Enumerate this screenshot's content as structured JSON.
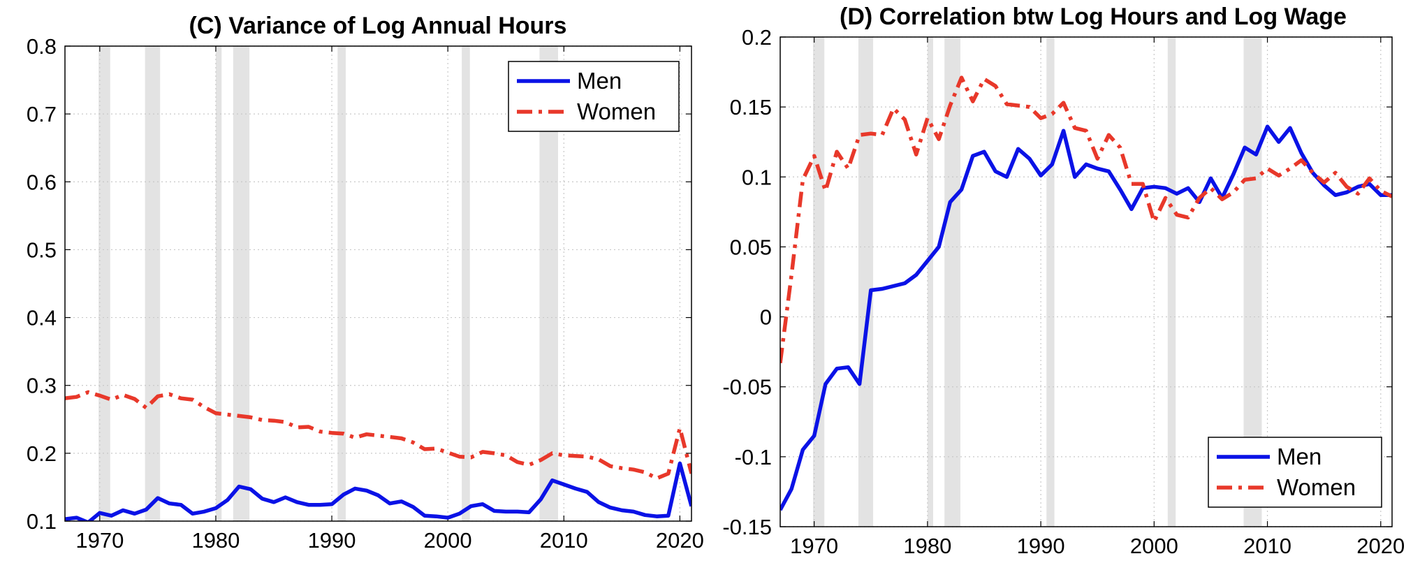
{
  "chart_data": [
    {
      "type": "line",
      "title": "(C) Variance of Log Annual Hours",
      "xlabel": "",
      "ylabel": "",
      "xlim": [
        1967,
        2021
      ],
      "ylim": [
        0.1,
        0.8
      ],
      "x_ticks": [
        1970,
        1980,
        1990,
        2000,
        2010,
        2020
      ],
      "y_ticks": [
        0.1,
        0.2,
        0.3,
        0.4,
        0.5,
        0.6,
        0.7,
        0.8
      ],
      "x_tick_labels": [
        "1970",
        "1980",
        "1990",
        "2000",
        "2010",
        "2020"
      ],
      "y_tick_labels": [
        "0.1",
        "0.2",
        "0.3",
        "0.4",
        "0.5",
        "0.6",
        "0.7",
        "0.8"
      ],
      "grid": true,
      "legend_position": "top-right",
      "recession_bands": [
        [
          1969.9,
          1970.9
        ],
        [
          1973.9,
          1975.2
        ],
        [
          1980.0,
          1980.5
        ],
        [
          1981.5,
          1982.9
        ],
        [
          1990.5,
          1991.2
        ],
        [
          2001.2,
          2001.9
        ],
        [
          2007.9,
          2009.5
        ]
      ],
      "series": [
        {
          "name": "Men",
          "color": "#0a12e6",
          "style": "solid",
          "x": [
            1967,
            1968,
            1969,
            1970,
            1971,
            1972,
            1973,
            1974,
            1975,
            1976,
            1977,
            1978,
            1979,
            1980,
            1981,
            1982,
            1983,
            1984,
            1985,
            1986,
            1987,
            1988,
            1989,
            1990,
            1991,
            1992,
            1993,
            1994,
            1995,
            1996,
            1997,
            1998,
            1999,
            2000,
            2001,
            2002,
            2003,
            2004,
            2005,
            2006,
            2007,
            2008,
            2009,
            2010,
            2011,
            2012,
            2013,
            2014,
            2015,
            2016,
            2017,
            2018,
            2019,
            2020,
            2021
          ],
          "y": [
            0.103,
            0.105,
            0.098,
            0.112,
            0.108,
            0.116,
            0.111,
            0.117,
            0.134,
            0.126,
            0.124,
            0.111,
            0.114,
            0.119,
            0.131,
            0.151,
            0.147,
            0.133,
            0.128,
            0.135,
            0.128,
            0.124,
            0.124,
            0.125,
            0.139,
            0.148,
            0.145,
            0.138,
            0.126,
            0.129,
            0.121,
            0.108,
            0.107,
            0.105,
            0.111,
            0.122,
            0.125,
            0.115,
            0.114,
            0.114,
            0.113,
            0.132,
            0.16,
            0.154,
            0.148,
            0.143,
            0.128,
            0.12,
            0.116,
            0.114,
            0.109,
            0.107,
            0.108,
            0.185,
            0.122
          ]
        },
        {
          "name": "Women",
          "color": "#e8382a",
          "style": "dashdot",
          "x": [
            1967,
            1968,
            1969,
            1970,
            1971,
            1972,
            1973,
            1974,
            1975,
            1976,
            1977,
            1978,
            1979,
            1980,
            1981,
            1982,
            1983,
            1984,
            1985,
            1986,
            1987,
            1988,
            1989,
            1990,
            1991,
            1992,
            1993,
            1994,
            1995,
            1996,
            1997,
            1998,
            1999,
            2000,
            2001,
            2002,
            2003,
            2004,
            2005,
            2006,
            2007,
            2008,
            2009,
            2010,
            2011,
            2012,
            2013,
            2014,
            2015,
            2016,
            2017,
            2018,
            2019,
            2020,
            2021
          ],
          "y": [
            0.281,
            0.283,
            0.29,
            0.285,
            0.279,
            0.286,
            0.28,
            0.267,
            0.284,
            0.287,
            0.281,
            0.279,
            0.268,
            0.259,
            0.257,
            0.255,
            0.253,
            0.249,
            0.248,
            0.246,
            0.238,
            0.239,
            0.232,
            0.23,
            0.229,
            0.223,
            0.228,
            0.226,
            0.224,
            0.222,
            0.216,
            0.206,
            0.207,
            0.201,
            0.195,
            0.194,
            0.202,
            0.2,
            0.197,
            0.187,
            0.183,
            0.19,
            0.2,
            0.197,
            0.196,
            0.195,
            0.191,
            0.181,
            0.178,
            0.176,
            0.172,
            0.163,
            0.17,
            0.237,
            0.17
          ]
        }
      ]
    },
    {
      "type": "line",
      "title": "(D) Correlation btw Log Hours and Log Wage",
      "xlabel": "",
      "ylabel": "",
      "xlim": [
        1967,
        2021
      ],
      "ylim": [
        -0.15,
        0.2
      ],
      "x_ticks": [
        1970,
        1980,
        1990,
        2000,
        2010,
        2020
      ],
      "y_ticks": [
        -0.15,
        -0.1,
        -0.05,
        0,
        0.05,
        0.1,
        0.15,
        0.2
      ],
      "x_tick_labels": [
        "1970",
        "1980",
        "1990",
        "2000",
        "2010",
        "2020"
      ],
      "y_tick_labels": [
        "-0.15",
        "-0.1",
        "-0.05",
        "0",
        "0.05",
        "0.1",
        "0.15",
        "0.2"
      ],
      "grid": true,
      "legend_position": "bottom-right",
      "recession_bands": [
        [
          1969.9,
          1970.9
        ],
        [
          1973.9,
          1975.2
        ],
        [
          1980.0,
          1980.5
        ],
        [
          1981.5,
          1982.9
        ],
        [
          1990.5,
          1991.2
        ],
        [
          2001.2,
          2001.9
        ],
        [
          2007.9,
          2009.5
        ]
      ],
      "series": [
        {
          "name": "Men",
          "color": "#0a12e6",
          "style": "solid",
          "x": [
            1967,
            1968,
            1969,
            1970,
            1971,
            1972,
            1973,
            1974,
            1975,
            1976,
            1977,
            1978,
            1979,
            1980,
            1981,
            1982,
            1983,
            1984,
            1985,
            1986,
            1987,
            1988,
            1989,
            1990,
            1991,
            1992,
            1993,
            1994,
            1995,
            1996,
            1997,
            1998,
            1999,
            2000,
            2001,
            2002,
            2003,
            2004,
            2005,
            2006,
            2007,
            2008,
            2009,
            2010,
            2011,
            2012,
            2013,
            2014,
            2015,
            2016,
            2017,
            2018,
            2019,
            2020,
            2021
          ],
          "y": [
            -0.138,
            -0.123,
            -0.095,
            -0.085,
            -0.048,
            -0.037,
            -0.036,
            -0.048,
            0.019,
            0.02,
            0.022,
            0.024,
            0.03,
            0.04,
            0.05,
            0.082,
            0.091,
            0.115,
            0.118,
            0.104,
            0.1,
            0.12,
            0.113,
            0.101,
            0.109,
            0.133,
            0.1,
            0.109,
            0.106,
            0.104,
            0.091,
            0.077,
            0.092,
            0.093,
            0.092,
            0.088,
            0.092,
            0.082,
            0.099,
            0.085,
            0.102,
            0.121,
            0.116,
            0.136,
            0.125,
            0.135,
            0.117,
            0.103,
            0.094,
            0.087,
            0.089,
            0.093,
            0.095,
            0.087,
            0.087
          ]
        },
        {
          "name": "Women",
          "color": "#e8382a",
          "style": "dashdot",
          "x": [
            1967,
            1968,
            1969,
            1970,
            1971,
            1972,
            1973,
            1974,
            1975,
            1976,
            1977,
            1978,
            1979,
            1980,
            1981,
            1982,
            1983,
            1984,
            1985,
            1986,
            1987,
            1988,
            1989,
            1990,
            1991,
            1992,
            1993,
            1994,
            1995,
            1996,
            1997,
            1998,
            1999,
            2000,
            2001,
            2002,
            2003,
            2004,
            2005,
            2006,
            2007,
            2008,
            2009,
            2010,
            2011,
            2012,
            2013,
            2014,
            2015,
            2016,
            2017,
            2018,
            2019,
            2020,
            2021
          ],
          "y": [
            -0.033,
            0.03,
            0.098,
            0.115,
            0.09,
            0.118,
            0.106,
            0.13,
            0.131,
            0.13,
            0.149,
            0.141,
            0.116,
            0.142,
            0.127,
            0.151,
            0.171,
            0.154,
            0.17,
            0.165,
            0.152,
            0.151,
            0.15,
            0.142,
            0.145,
            0.153,
            0.135,
            0.133,
            0.113,
            0.13,
            0.121,
            0.095,
            0.095,
            0.068,
            0.085,
            0.073,
            0.071,
            0.085,
            0.092,
            0.084,
            0.089,
            0.098,
            0.099,
            0.106,
            0.101,
            0.106,
            0.112,
            0.103,
            0.096,
            0.103,
            0.093,
            0.088,
            0.099,
            0.09,
            0.086
          ]
        }
      ]
    }
  ]
}
